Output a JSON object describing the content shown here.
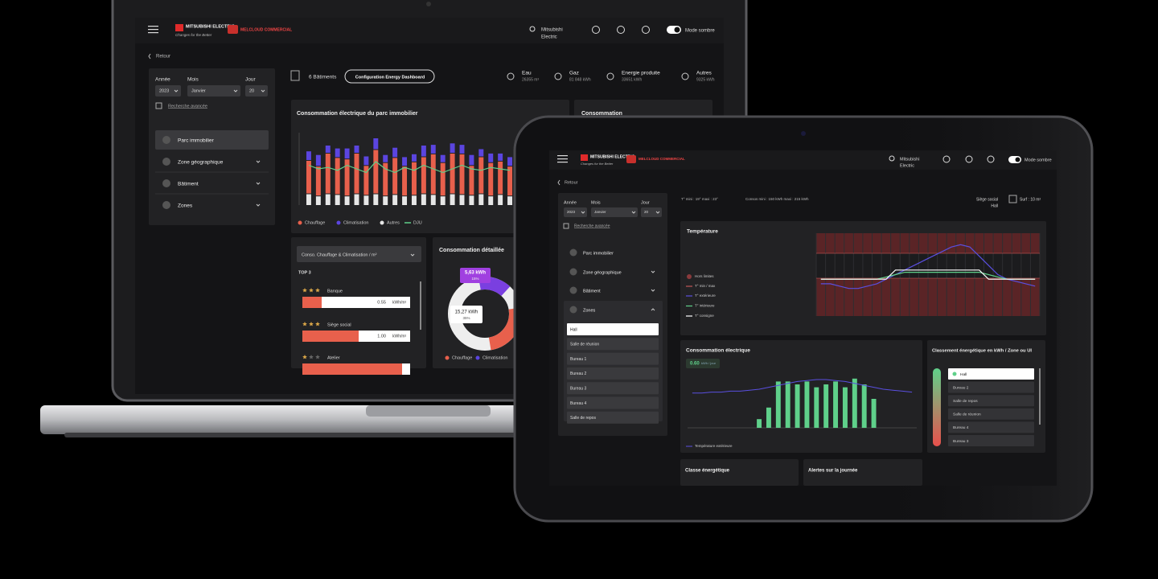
{
  "laptop": {
    "header": {
      "brand": "MITSUBISHI ELECTRIC",
      "tagline": "Changes for the Better",
      "brand2": "MELCLOUD COMMERCIAL",
      "user": [
        "Mitsubishi",
        "Electric"
      ],
      "dark_mode": "Mode sombre"
    },
    "back": "Retour",
    "filters": {
      "labels": [
        "Année",
        "Mois",
        "Jour"
      ],
      "values": [
        "2023",
        "Janvier",
        "20"
      ],
      "advanced": "Recherche avancée"
    },
    "nav": [
      "Parc immobilier",
      "Zone géographique",
      "Bâtiment",
      "Zones"
    ],
    "buildings": "6 Bâtiments",
    "config_button": "Configuration Energy Dashboard",
    "stats": [
      {
        "label": "Eau",
        "value": "26355 m³"
      },
      {
        "label": "Gaz",
        "value": "81 848 kWh"
      },
      {
        "label": "Energie produite",
        "value": "33651 kWh"
      },
      {
        "label": "Autres",
        "value": "9325 kWh"
      }
    ],
    "consumption_chart": {
      "type": "bar",
      "title": "Consommation électrique du parc immobilier",
      "stacked": true,
      "ylim": [
        0,
        100
      ],
      "series": [
        {
          "name": "Chauffage",
          "color": "#e8604c",
          "values": [
            45,
            40,
            55,
            50,
            50,
            55,
            40,
            60,
            45,
            50,
            40,
            45,
            50,
            55,
            45,
            55,
            55,
            40,
            50,
            45,
            45,
            40
          ]
        },
        {
          "name": "Climatisation",
          "color": "#5b45e0",
          "values": [
            12,
            15,
            10,
            12,
            14,
            10,
            12,
            15,
            10,
            13,
            12,
            10,
            15,
            12,
            10,
            13,
            12,
            14,
            10,
            12,
            10,
            12
          ]
        },
        {
          "name": "Autres",
          "color": "#e6e6e6",
          "values": [
            15,
            12,
            15,
            14,
            12,
            15,
            13,
            15,
            12,
            14,
            12,
            13,
            15,
            14,
            12,
            15,
            14,
            13,
            15,
            12,
            14,
            12
          ]
        }
      ],
      "line": {
        "name": "DJU",
        "color": "#5fd08a",
        "values": [
          55,
          50,
          52,
          48,
          55,
          50,
          45,
          60,
          50,
          45,
          52,
          48,
          55,
          50,
          45,
          50,
          55,
          50,
          48,
          52,
          50,
          48
        ]
      }
    },
    "side_title": "Consommation",
    "ranking": {
      "select": "Conso. Chauffage & Climatisation / m²",
      "top": "TOP 3",
      "items": [
        {
          "name": "Banque",
          "value": "0.55",
          "unit": "kWh/m²"
        },
        {
          "name": "Siège social",
          "value": "1.00",
          "unit": "kWh/m²"
        },
        {
          "name": "Atelier"
        }
      ]
    },
    "detail": {
      "title": "Consommation détaillée",
      "labels": [
        {
          "value": "5,63 kWh",
          "pct": "15%"
        },
        {
          "value": "15,27 kWh",
          "pct": "35%"
        }
      ],
      "legend": [
        "Chauffage",
        "Climatisation"
      ]
    }
  },
  "tablet": {
    "header": {
      "brand": "MITSUBISHI ELECTRIC",
      "tagline": "Changes for the Better",
      "brand2": "MELCLOUD COMMERCIAL",
      "user": [
        "Mitsubishi",
        "Electric"
      ],
      "dark_mode": "Mode sombre"
    },
    "back": "Retour",
    "filters": {
      "labels": [
        "Année",
        "Mois",
        "Jour"
      ],
      "values": [
        "2023",
        "Janvier",
        "20"
      ],
      "advanced": "Recherche avancée"
    },
    "nav": [
      "Parc immobilier",
      "Zone géographique",
      "Bâtiment",
      "Zones"
    ],
    "zones": [
      "Hall",
      "Salle de réunion",
      "Bureau 1",
      "Bureau 2",
      "Bureau 3",
      "Bureau 4",
      "Salle de repos"
    ],
    "temp_info": "T°   mini : 19°   maxi : 23°",
    "conso_info": "Consos   mini : 150 kWh   maxi : 215 kWh",
    "location": [
      "Siège social",
      "Hall"
    ],
    "surface": "Surf : 10 m²",
    "temperature_chart": {
      "type": "line",
      "title": "Température",
      "ylim": [
        12,
        30
      ],
      "legend_extra": [
        "Hors limites",
        "T° min / max"
      ],
      "series": [
        {
          "name": "T° extérieure",
          "color": "#5a4fe0",
          "values": [
            19,
            19,
            18.5,
            18,
            18,
            18.5,
            19,
            20,
            21,
            22,
            23,
            24,
            25,
            26,
            27,
            27.5,
            27,
            25,
            23,
            21,
            20,
            19.5,
            19,
            18.5
          ]
        },
        {
          "name": "T° intérieure",
          "color": "#5fd08a",
          "values": [
            20,
            20,
            20,
            20,
            20,
            20,
            20,
            20.5,
            21,
            21.5,
            21.5,
            21.5,
            21.5,
            21.5,
            21.5,
            21.5,
            21.5,
            21.5,
            21,
            20.5,
            20,
            20,
            20,
            20
          ]
        },
        {
          "name": "T° consigne",
          "color": "#ffffff",
          "values": [
            20,
            20,
            20,
            20,
            20,
            20,
            20,
            20,
            22,
            22,
            22,
            22,
            22,
            22,
            22,
            22,
            22,
            22,
            20,
            20,
            20,
            20,
            20,
            20
          ]
        }
      ]
    },
    "consumption_chart": {
      "type": "bar",
      "title": "Consommation électrique",
      "daily": "0.60",
      "daily_unit": "kWh / jour",
      "ylim": [
        0,
        1
      ],
      "color": "#5fd08a",
      "values": [
        0,
        0,
        0,
        0,
        0,
        0,
        0,
        0.15,
        0.35,
        0.8,
        0.8,
        0.75,
        0.8,
        0.7,
        0.75,
        0.8,
        0.7,
        0.85,
        0.75,
        0.5,
        0,
        0,
        0,
        0
      ],
      "line": {
        "name": "Température extérieure",
        "color": "#5a4fe0",
        "y2lim": [
          0,
          30
        ],
        "values": [
          18,
          18,
          18.5,
          18.5,
          19,
          19,
          19.5,
          20,
          21,
          22,
          23,
          24,
          24.5,
          25,
          25,
          24.5,
          24,
          23,
          22,
          21,
          20,
          19.5,
          19,
          18.5
        ]
      }
    },
    "ranking": {
      "title": "Classement énergétique en kWh / Zone ou UI",
      "items": [
        "Hall",
        "Bureau 2",
        "Salle de repos",
        "Salle de réunion",
        "Bureau 4",
        "Bureau 3"
      ]
    },
    "energy_class": "Classe énergétique",
    "alerts": "Alertes sur la journée"
  }
}
